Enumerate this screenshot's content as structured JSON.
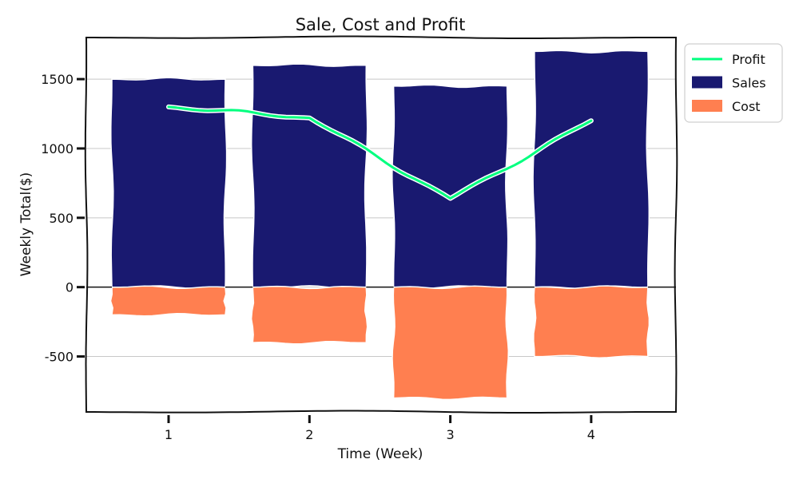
{
  "chart_data": {
    "type": "bar",
    "title": "Sale, Cost and Profit",
    "xlabel": "Time (Week)",
    "ylabel": "Weekly Total($)",
    "categories": [
      "1",
      "2",
      "3",
      "4"
    ],
    "ylim": [
      -900,
      1800
    ],
    "yticks": [
      "-500",
      "0",
      "500",
      "1000",
      "1500"
    ],
    "grid": true,
    "legend_position": "outside-top-right",
    "series": [
      {
        "name": "Profit",
        "kind": "line",
        "color": "#00ff7f",
        "values": [
          1300,
          1220,
          640,
          1200
        ]
      },
      {
        "name": "Sales",
        "kind": "bar",
        "color": "#191970",
        "values": [
          1500,
          1600,
          1450,
          1700
        ]
      },
      {
        "name": "Cost",
        "kind": "bar",
        "color": "#ff7f50",
        "values": [
          -200,
          -400,
          -800,
          -500
        ]
      }
    ]
  }
}
